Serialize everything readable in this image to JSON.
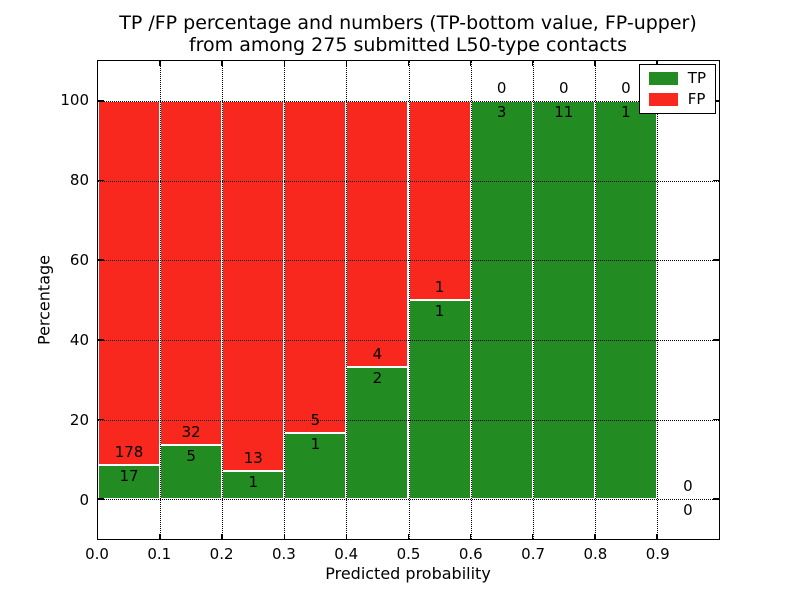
{
  "chart_data": {
    "type": "bar",
    "stacked": true,
    "title_line1": "TP /FP percentage and numbers (TP-bottom value, FP-upper)",
    "title_line2": "from among 275 submitted L50-type contacts",
    "xlabel": "Predicted probability",
    "ylabel": "Percentage",
    "xlim": [
      0.0,
      1.0
    ],
    "ylim": [
      -10,
      110
    ],
    "xticks": [
      "0.0",
      "0.1",
      "0.2",
      "0.3",
      "0.4",
      "0.5",
      "0.6",
      "0.7",
      "0.8",
      "0.9"
    ],
    "yticks": [
      0,
      20,
      40,
      60,
      80,
      100
    ],
    "grid": {
      "style": "dotted",
      "color": "#000000",
      "bar_edge_color": "#ffffff"
    },
    "total_submitted": 275,
    "legend": {
      "position": "upper-right",
      "items": [
        {
          "label": "TP",
          "color": "#228c22"
        },
        {
          "label": "FP",
          "color": "#f8281e"
        }
      ]
    },
    "bins": [
      {
        "x_start": 0.0,
        "x_end": 0.1,
        "tp": 17,
        "fp": 178,
        "tp_pct": 8.7
      },
      {
        "x_start": 0.1,
        "x_end": 0.2,
        "tp": 5,
        "fp": 32,
        "tp_pct": 13.5
      },
      {
        "x_start": 0.2,
        "x_end": 0.3,
        "tp": 1,
        "fp": 13,
        "tp_pct": 7.1
      },
      {
        "x_start": 0.3,
        "x_end": 0.4,
        "tp": 1,
        "fp": 5,
        "tp_pct": 16.7
      },
      {
        "x_start": 0.4,
        "x_end": 0.5,
        "tp": 2,
        "fp": 4,
        "tp_pct": 33.3
      },
      {
        "x_start": 0.5,
        "x_end": 0.6,
        "tp": 1,
        "fp": 1,
        "tp_pct": 50.0
      },
      {
        "x_start": 0.6,
        "x_end": 0.7,
        "tp": 3,
        "fp": 0,
        "tp_pct": 100.0
      },
      {
        "x_start": 0.7,
        "x_end": 0.8,
        "tp": 11,
        "fp": 0,
        "tp_pct": 100.0
      },
      {
        "x_start": 0.8,
        "x_end": 0.9,
        "tp": 1,
        "fp": 0,
        "tp_pct": 100.0
      },
      {
        "x_start": 0.9,
        "x_end": 1.0,
        "tp": 0,
        "fp": 0,
        "tp_pct": 0.0
      }
    ]
  }
}
